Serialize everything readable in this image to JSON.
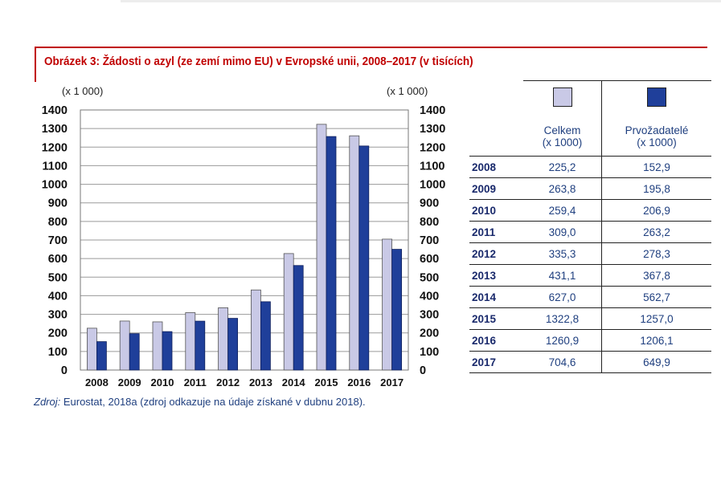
{
  "figure": {
    "title": "Obrázek 3: Žádosti o azyl (ze zemí mimo EU) v Evropské unii, 2008–2017 (v tisících)",
    "unit_left": "(x 1 000)",
    "unit_right": "(x 1 000)"
  },
  "colors": {
    "celkem": "#c9c9e6",
    "prvozadatele": "#1f3f9a",
    "title": "#c00000",
    "text": "#1f3f7f"
  },
  "chart_data": {
    "type": "bar",
    "title": "",
    "xlabel": "",
    "ylabel": "(x 1 000)",
    "ylim": [
      0,
      1400
    ],
    "yticks": [
      0,
      100,
      200,
      300,
      400,
      500,
      600,
      700,
      800,
      900,
      1000,
      1100,
      1200,
      1300,
      1400
    ],
    "grid": true,
    "categories": [
      "2008",
      "2009",
      "2010",
      "2011",
      "2012",
      "2013",
      "2014",
      "2015",
      "2016",
      "2017"
    ],
    "series": [
      {
        "name": "Celkem",
        "values": [
          225.2,
          263.8,
          259.4,
          309.0,
          335.3,
          431.1,
          627.0,
          1322.8,
          1260.9,
          704.6
        ]
      },
      {
        "name": "Prvožadatelé",
        "values": [
          152.9,
          195.8,
          206.9,
          263.2,
          278.3,
          367.8,
          562.7,
          1257.0,
          1206.1,
          649.9
        ]
      }
    ]
  },
  "table": {
    "columns": [
      {
        "label": "Celkem",
        "sublabel": "(x 1000)"
      },
      {
        "label": "Prvožadatelé",
        "sublabel": "(x 1000)"
      }
    ],
    "rows": [
      {
        "year": "2008",
        "celkem": "225,2",
        "prvo": "152,9"
      },
      {
        "year": "2009",
        "celkem": "263,8",
        "prvo": "195,8"
      },
      {
        "year": "2010",
        "celkem": "259,4",
        "prvo": "206,9"
      },
      {
        "year": "2011",
        "celkem": "309,0",
        "prvo": "263,2"
      },
      {
        "year": "2012",
        "celkem": "335,3",
        "prvo": "278,3"
      },
      {
        "year": "2013",
        "celkem": "431,1",
        "prvo": "367,8"
      },
      {
        "year": "2014",
        "celkem": "627,0",
        "prvo": "562,7"
      },
      {
        "year": "2015",
        "celkem": "1322,8",
        "prvo": "1257,0"
      },
      {
        "year": "2016",
        "celkem": "1260,9",
        "prvo": "1206,1"
      },
      {
        "year": "2017",
        "celkem": "704,6",
        "prvo": "649,9"
      }
    ]
  },
  "source": {
    "label": "Zdroj:",
    "text": " Eurostat, 2018a (zdroj odkazuje na údaje získané v dubnu 2018)."
  }
}
